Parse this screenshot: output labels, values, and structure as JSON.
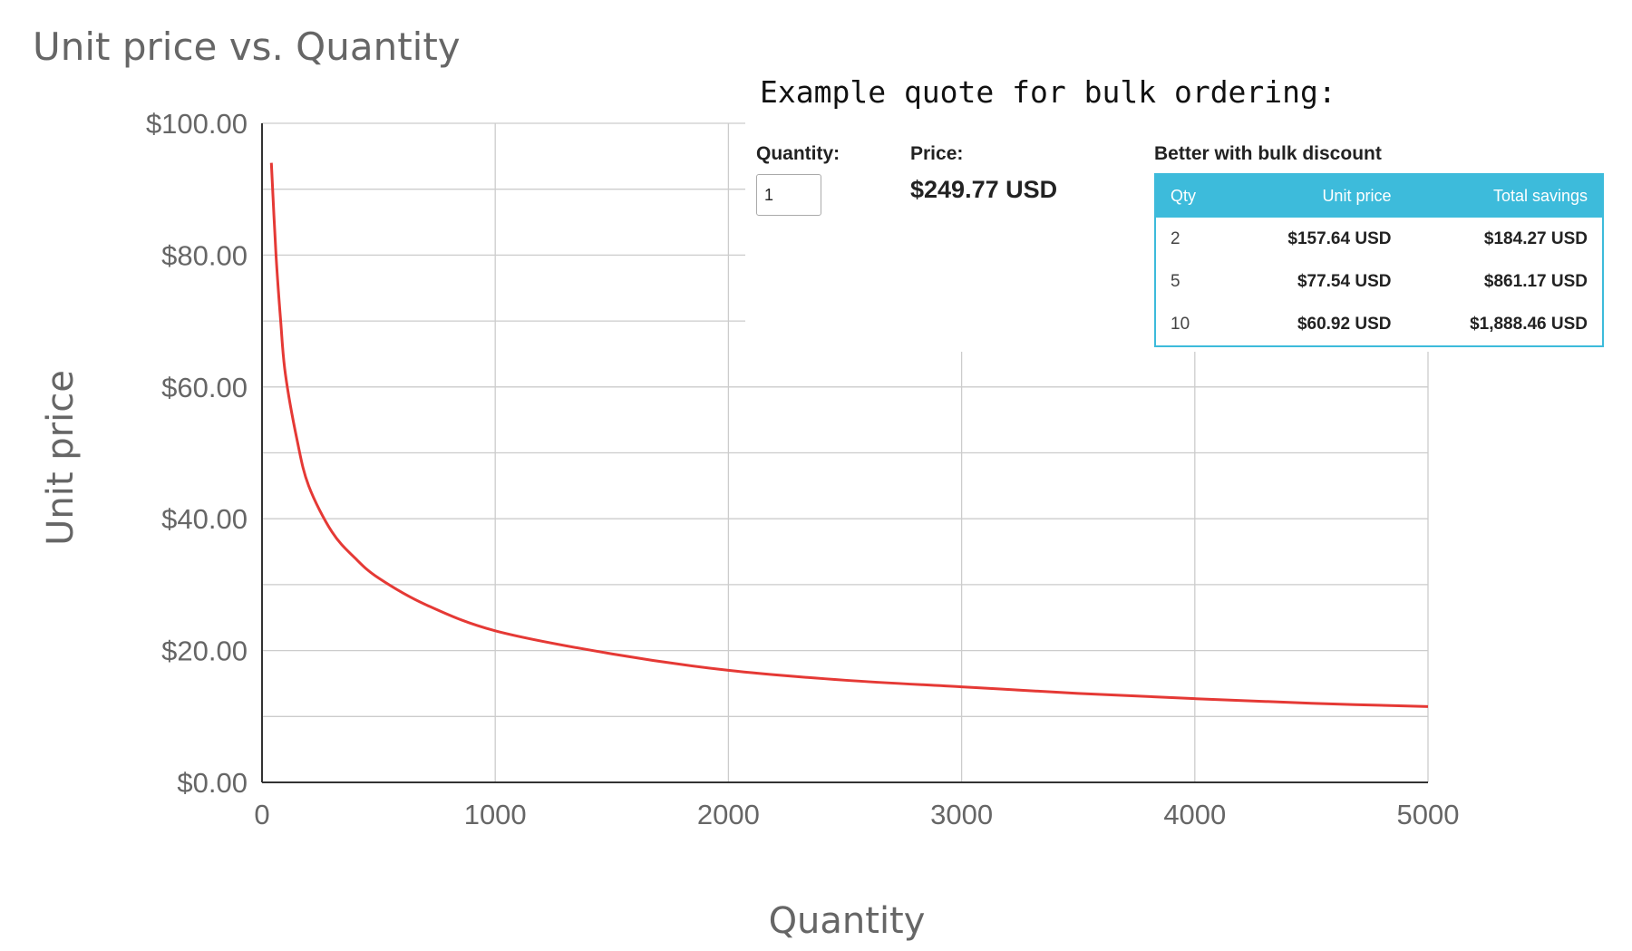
{
  "chart_data": {
    "type": "line",
    "title": "Unit price vs. Quantity",
    "xlabel": "Quantity",
    "ylabel": "Unit price",
    "xlim": [
      0,
      5000
    ],
    "ylim": [
      0,
      100
    ],
    "x_ticks": [
      "0",
      "1000",
      "2000",
      "3000",
      "4000",
      "5000"
    ],
    "y_ticks": [
      "$0.00",
      "$20.00",
      "$40.00",
      "$60.00",
      "$80.00",
      "$100.00"
    ],
    "grid": true,
    "series": [
      {
        "color": "#e53935",
        "points": [
          [
            40,
            94
          ],
          [
            60,
            80
          ],
          [
            80,
            70
          ],
          [
            100,
            62
          ],
          [
            150,
            52
          ],
          [
            200,
            45
          ],
          [
            300,
            38
          ],
          [
            400,
            34
          ],
          [
            500,
            31
          ],
          [
            700,
            27
          ],
          [
            1000,
            23
          ],
          [
            1500,
            19.5
          ],
          [
            2000,
            17
          ],
          [
            2500,
            15.5
          ],
          [
            3000,
            14.5
          ],
          [
            3500,
            13.5
          ],
          [
            4000,
            12.7
          ],
          [
            4500,
            12
          ],
          [
            5000,
            11.5
          ]
        ]
      }
    ]
  },
  "quote": {
    "heading": "Example quote for bulk ordering:",
    "quantity_label": "Quantity:",
    "quantity_value": "1",
    "price_label": "Price:",
    "price_value": "$249.77 USD",
    "discount_title": "Better with bulk discount",
    "table": {
      "headers": [
        "Qty",
        "Unit price",
        "Total savings"
      ],
      "rows": [
        [
          "2",
          "$157.64 USD",
          "$184.27 USD"
        ],
        [
          "5",
          "$77.54 USD",
          "$861.17 USD"
        ],
        [
          "10",
          "$60.92 USD",
          "$1,888.46 USD"
        ]
      ]
    }
  }
}
